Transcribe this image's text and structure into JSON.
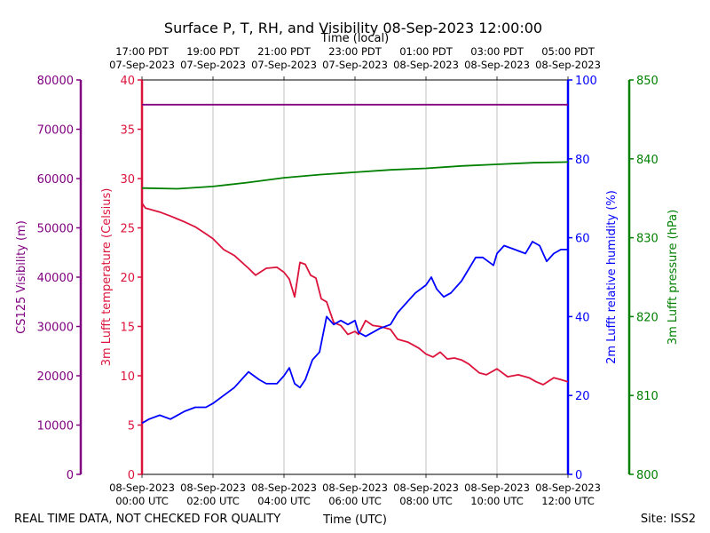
{
  "chart_data": {
    "type": "line",
    "title": "Surface P, T, RH, and Visibility 08-Sep-2023 12:00:00",
    "top_xlabel": "Time (local)",
    "xlabel": "Time (UTC)",
    "footer_left": "REAL TIME DATA, NOT CHECKED FOR QUALITY",
    "footer_right": "Site: ISS2",
    "x_utc_hours_range": [
      0,
      12
    ],
    "x_ticks_utc": [
      {
        "line1": "08-Sep-2023",
        "line2": "00:00 UTC"
      },
      {
        "line1": "08-Sep-2023",
        "line2": "02:00 UTC"
      },
      {
        "line1": "08-Sep-2023",
        "line2": "04:00 UTC"
      },
      {
        "line1": "08-Sep-2023",
        "line2": "06:00 UTC"
      },
      {
        "line1": "08-Sep-2023",
        "line2": "08:00 UTC"
      },
      {
        "line1": "08-Sep-2023",
        "line2": "10:00 UTC"
      },
      {
        "line1": "08-Sep-2023",
        "line2": "12:00 UTC"
      }
    ],
    "x_ticks_local": [
      {
        "line1": "17:00 PDT",
        "line2": "07-Sep-2023"
      },
      {
        "line1": "19:00 PDT",
        "line2": "07-Sep-2023"
      },
      {
        "line1": "21:00 PDT",
        "line2": "07-Sep-2023"
      },
      {
        "line1": "23:00 PDT",
        "line2": "07-Sep-2023"
      },
      {
        "line1": "01:00 PDT",
        "line2": "08-Sep-2023"
      },
      {
        "line1": "03:00 PDT",
        "line2": "08-Sep-2023"
      },
      {
        "line1": "05:00 PDT",
        "line2": "08-Sep-2023"
      }
    ],
    "grid": "vertical",
    "axes": {
      "visibility": {
        "label": "CS125 Visibility (m)",
        "range": [
          0,
          80000
        ],
        "ticks": [
          "0",
          "10000",
          "20000",
          "30000",
          "40000",
          "50000",
          "60000",
          "70000",
          "80000"
        ],
        "color": "#800080"
      },
      "temperature": {
        "label": "3m Lufft temperature (Celsius)",
        "range": [
          0,
          40
        ],
        "ticks": [
          "0",
          "5",
          "10",
          "15",
          "20",
          "25",
          "30",
          "35",
          "40"
        ],
        "color": "#dc143c"
      },
      "humidity": {
        "label": "2m Lufft relative humidity (%)",
        "range": [
          0,
          100
        ],
        "ticks": [
          "0",
          "20",
          "40",
          "60",
          "80",
          "100"
        ],
        "color": "#0000ff"
      },
      "pressure": {
        "label": "3m Lufft pressure (hPa)",
        "range": [
          800,
          850
        ],
        "ticks": [
          "800",
          "810",
          "820",
          "830",
          "840",
          "850"
        ],
        "color": "#008000"
      }
    },
    "series": [
      {
        "key": "visibility",
        "axis": "visibility",
        "color": "#800080",
        "x": [
          0,
          12
        ],
        "values": [
          75000,
          75000
        ]
      },
      {
        "key": "temperature",
        "axis": "temperature",
        "color": "#dc143c",
        "x": [
          0,
          0.1,
          0.3,
          0.5,
          0.8,
          1.0,
          1.2,
          1.5,
          1.8,
          2.0,
          2.3,
          2.6,
          3.0,
          3.2,
          3.5,
          3.8,
          4.0,
          4.15,
          4.3,
          4.45,
          4.6,
          4.75,
          4.9,
          5.05,
          5.2,
          5.4,
          5.6,
          5.8,
          6.0,
          6.1,
          6.3,
          6.5,
          6.7,
          7.0,
          7.2,
          7.5,
          7.8,
          8.0,
          8.2,
          8.4,
          8.6,
          8.8,
          9.0,
          9.2,
          9.5,
          9.7,
          10.0,
          10.3,
          10.6,
          10.9,
          11.1,
          11.3,
          11.6,
          11.8,
          12.0
        ],
        "values": [
          27.5,
          27.0,
          26.8,
          26.6,
          26.2,
          25.9,
          25.6,
          25.1,
          24.4,
          23.9,
          22.8,
          22.2,
          20.9,
          20.2,
          20.9,
          21.0,
          20.5,
          19.8,
          18.0,
          21.5,
          21.3,
          20.2,
          19.9,
          17.8,
          17.5,
          15.4,
          15.1,
          14.2,
          14.5,
          14.2,
          15.6,
          15.1,
          15.0,
          14.7,
          13.7,
          13.4,
          12.8,
          12.2,
          11.9,
          12.4,
          11.7,
          11.8,
          11.6,
          11.2,
          10.3,
          10.1,
          10.7,
          9.9,
          10.1,
          9.8,
          9.4,
          9.1,
          9.8,
          9.6,
          9.4
        ]
      },
      {
        "key": "humidity",
        "axis": "humidity",
        "color": "#0000ff",
        "x": [
          0,
          0.2,
          0.5,
          0.8,
          1.0,
          1.2,
          1.5,
          1.8,
          2.0,
          2.3,
          2.6,
          3.0,
          3.3,
          3.5,
          3.8,
          4.0,
          4.15,
          4.3,
          4.45,
          4.6,
          4.8,
          5.0,
          5.2,
          5.4,
          5.6,
          5.8,
          6.0,
          6.1,
          6.3,
          6.5,
          6.7,
          7.0,
          7.2,
          7.5,
          7.7,
          8.0,
          8.15,
          8.3,
          8.5,
          8.7,
          9.0,
          9.2,
          9.4,
          9.6,
          9.9,
          10.0,
          10.2,
          10.5,
          10.8,
          11.0,
          11.2,
          11.4,
          11.6,
          11.8,
          12.0
        ],
        "values": [
          13.0,
          14.0,
          15.0,
          14.0,
          15.0,
          16.0,
          17.0,
          17.0,
          18.0,
          20.0,
          22.0,
          26.0,
          24.0,
          23.0,
          23.0,
          25.0,
          27.0,
          23.0,
          22.0,
          24.0,
          29.0,
          31.0,
          40.0,
          38.0,
          39.0,
          38.0,
          39.0,
          36.0,
          35.0,
          36.0,
          37.0,
          38.0,
          41.0,
          44.0,
          46.0,
          48.0,
          50.0,
          47.0,
          45.0,
          46.0,
          49.0,
          52.0,
          55.0,
          55.0,
          53.0,
          56.0,
          58.0,
          57.0,
          56.0,
          59.0,
          58.0,
          54.0,
          56.0,
          57.0,
          57.0
        ]
      },
      {
        "key": "pressure",
        "axis": "pressure",
        "color": "#008000",
        "x": [
          0,
          1,
          2,
          3,
          4,
          5,
          6,
          7,
          8,
          9,
          10,
          11,
          12
        ],
        "values": [
          836.3,
          836.2,
          836.5,
          837.0,
          837.6,
          838.0,
          838.3,
          838.6,
          838.8,
          839.1,
          839.3,
          839.5,
          839.6
        ]
      }
    ]
  }
}
